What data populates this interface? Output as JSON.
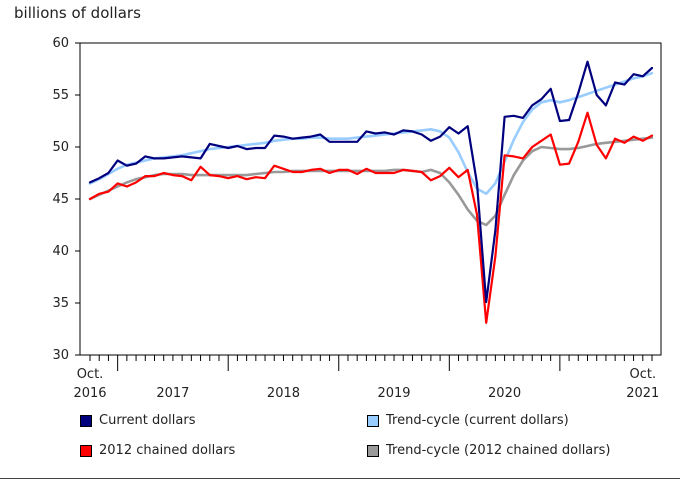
{
  "unit_label": "billions of dollars",
  "chart_data": {
    "type": "line",
    "ylabel": "billions of dollars",
    "ylim": [
      30,
      60
    ],
    "yticks": [
      30,
      35,
      40,
      45,
      50,
      55,
      60
    ],
    "grid": false,
    "x_start": "2016-10",
    "x_end": "2021-10",
    "x_tick_labels": [
      {
        "date": "2016-10",
        "line1": "Oct.",
        "line2": "2016"
      },
      {
        "date": "2017-07",
        "line1": "",
        "line2": "2017"
      },
      {
        "date": "2018-07",
        "line1": "",
        "line2": "2018"
      },
      {
        "date": "2019-07",
        "line1": "",
        "line2": "2019"
      },
      {
        "date": "2020-07",
        "line1": "",
        "line2": "2020"
      },
      {
        "date": "2021-10",
        "line1": "Oct.",
        "line2": "2021"
      }
    ],
    "series": [
      {
        "name": "Current dollars",
        "color": "#00007f",
        "values": [
          46.6,
          47.0,
          47.5,
          48.7,
          48.2,
          48.4,
          49.1,
          48.9,
          48.9,
          49.0,
          49.1,
          49.0,
          48.9,
          50.3,
          50.1,
          49.9,
          50.1,
          49.8,
          49.9,
          49.9,
          51.1,
          51.0,
          50.8,
          50.9,
          51.0,
          51.2,
          50.5,
          50.5,
          50.5,
          50.5,
          51.5,
          51.3,
          51.4,
          51.2,
          51.6,
          51.5,
          51.2,
          50.6,
          51.0,
          51.9,
          51.3,
          52.0,
          46.5,
          35.1,
          42.0,
          52.9,
          53.0,
          52.8,
          54.0,
          54.6,
          55.6,
          52.5,
          52.6,
          55.2,
          58.2,
          55.0,
          54.0,
          56.2,
          56.0,
          57.0,
          56.8,
          57.6
        ]
      },
      {
        "name": "Trend-cycle (current dollars)",
        "color": "#99ccff",
        "values": [
          46.5,
          46.9,
          47.4,
          47.9,
          48.3,
          48.5,
          48.7,
          48.9,
          49.0,
          49.1,
          49.2,
          49.4,
          49.6,
          49.8,
          49.9,
          50.0,
          50.1,
          50.2,
          50.3,
          50.4,
          50.6,
          50.7,
          50.8,
          50.8,
          50.9,
          50.9,
          50.8,
          50.8,
          50.8,
          50.9,
          51.0,
          51.1,
          51.2,
          51.3,
          51.4,
          51.5,
          51.6,
          51.7,
          51.5,
          50.9,
          49.5,
          47.6,
          46.0,
          45.5,
          46.5,
          48.6,
          50.7,
          52.4,
          53.6,
          54.3,
          54.5,
          54.3,
          54.5,
          54.8,
          55.1,
          55.4,
          55.7,
          56.0,
          56.3,
          56.6,
          56.8,
          57.1
        ]
      },
      {
        "name": "2012 chained dollars",
        "color": "#ff0000",
        "values": [
          45.0,
          45.5,
          45.7,
          46.5,
          46.2,
          46.6,
          47.2,
          47.2,
          47.5,
          47.3,
          47.2,
          46.8,
          48.1,
          47.3,
          47.2,
          47.0,
          47.2,
          46.9,
          47.1,
          47.0,
          48.2,
          47.9,
          47.6,
          47.6,
          47.8,
          47.9,
          47.5,
          47.8,
          47.8,
          47.4,
          47.9,
          47.5,
          47.5,
          47.5,
          47.8,
          47.7,
          47.6,
          46.8,
          47.2,
          48.0,
          47.1,
          47.8,
          43.5,
          33.1,
          39.5,
          49.2,
          49.1,
          48.9,
          50.0,
          50.6,
          51.2,
          48.3,
          48.4,
          50.5,
          53.3,
          50.2,
          48.9,
          50.8,
          50.4,
          51.0,
          50.6,
          51.1
        ]
      },
      {
        "name": "Trend-cycle (2012 chained dollars)",
        "color": "#999999",
        "values": [
          45.0,
          45.4,
          45.8,
          46.2,
          46.6,
          46.9,
          47.1,
          47.3,
          47.4,
          47.4,
          47.4,
          47.3,
          47.3,
          47.3,
          47.3,
          47.3,
          47.3,
          47.3,
          47.4,
          47.5,
          47.6,
          47.6,
          47.7,
          47.7,
          47.7,
          47.7,
          47.7,
          47.7,
          47.7,
          47.7,
          47.7,
          47.7,
          47.7,
          47.8,
          47.8,
          47.7,
          47.6,
          47.8,
          47.5,
          46.6,
          45.4,
          44.0,
          42.9,
          42.5,
          43.4,
          45.4,
          47.3,
          48.7,
          49.6,
          50.0,
          49.9,
          49.8,
          49.8,
          49.9,
          50.1,
          50.3,
          50.4,
          50.5,
          50.6,
          50.7,
          50.8,
          50.9
        ]
      }
    ]
  },
  "legend": [
    {
      "label": "Current dollars",
      "color": "#00007f"
    },
    {
      "label": "Trend-cycle (current dollars)",
      "color": "#99ccff"
    },
    {
      "label": "2012 chained dollars",
      "color": "#ff0000"
    },
    {
      "label": "Trend-cycle (2012 chained dollars)",
      "color": "#999999"
    }
  ]
}
